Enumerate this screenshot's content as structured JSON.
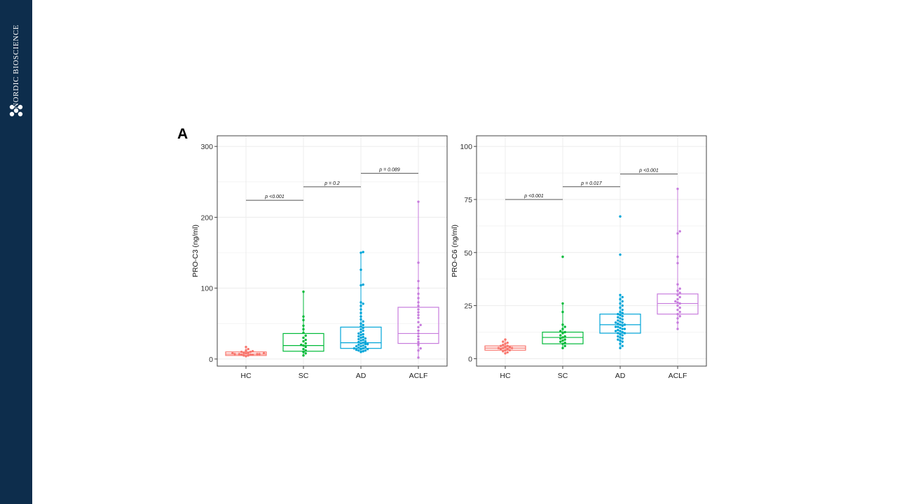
{
  "brand": {
    "name": "NORDIC BIOSCIENCE",
    "logo_icon": "molecule-logo-icon"
  },
  "panel_label": "A",
  "chart_data": [
    {
      "type": "box",
      "ylabel": "PRO-C3 (ng/ml)",
      "ylim": [
        -10,
        315
      ],
      "yticks": [
        0,
        100,
        200,
        300
      ],
      "categories": [
        "HC",
        "SC",
        "AD",
        "ACLF"
      ],
      "colors": [
        "#f8766d",
        "#00ba38",
        "#00a5d8",
        "#c77cdd"
      ],
      "boxes": [
        {
          "q1": 5,
          "median": 7,
          "q3": 10,
          "min": 4,
          "max": 17
        },
        {
          "q1": 11,
          "median": 19,
          "q3": 36,
          "min": 5,
          "max": 95
        },
        {
          "q1": 15,
          "median": 23,
          "q3": 45,
          "min": 10,
          "max": 150
        },
        {
          "q1": 22,
          "median": 36,
          "q3": 73,
          "min": 2,
          "max": 222
        }
      ],
      "points": [
        [
          4,
          5,
          5,
          6,
          6,
          6,
          7,
          7,
          7,
          7,
          8,
          8,
          8,
          9,
          9,
          10,
          10,
          11,
          12,
          14,
          17
        ],
        [
          5,
          8,
          10,
          12,
          14,
          17,
          19,
          20,
          22,
          25,
          27,
          30,
          33,
          37,
          42,
          47,
          55,
          60,
          95
        ],
        [
          10,
          11,
          12,
          12,
          13,
          14,
          14,
          15,
          15,
          16,
          17,
          18,
          18,
          19,
          20,
          21,
          21,
          22,
          23,
          24,
          25,
          26,
          27,
          28,
          29,
          30,
          31,
          32,
          34,
          35,
          36,
          38,
          40,
          42,
          44,
          46,
          48,
          50,
          53,
          56,
          60,
          65,
          70,
          75,
          78,
          80,
          104,
          105,
          126,
          150,
          151
        ],
        [
          2,
          12,
          15,
          20,
          24,
          28,
          32,
          36,
          40,
          45,
          48,
          52,
          58,
          62,
          66,
          70,
          75,
          80,
          86,
          92,
          100,
          110,
          136,
          222
        ]
      ],
      "comparisons": [
        {
          "from": "HC",
          "to": "SC",
          "y": 224,
          "label": "p <0.001"
        },
        {
          "from": "SC",
          "to": "AD",
          "y": 243,
          "label": "p = 0.2"
        },
        {
          "from": "AD",
          "to": "ACLF",
          "y": 262,
          "label": "p = 0.089"
        }
      ],
      "grid": true
    },
    {
      "type": "box",
      "ylabel": "PRO-C6 (ng/ml)",
      "ylim": [
        -3.5,
        105
      ],
      "yticks": [
        0,
        25,
        50,
        75,
        100
      ],
      "categories": [
        "HC",
        "SC",
        "AD",
        "ACLF"
      ],
      "colors": [
        "#f8766d",
        "#00ba38",
        "#00a5d8",
        "#c77cdd"
      ],
      "boxes": [
        {
          "q1": 4,
          "median": 5,
          "q3": 6,
          "min": 2.5,
          "max": 9
        },
        {
          "q1": 7,
          "median": 10,
          "q3": 12.5,
          "min": 5,
          "max": 26
        },
        {
          "q1": 12,
          "median": 16,
          "q3": 21,
          "min": 5,
          "max": 30
        },
        {
          "q1": 21,
          "median": 26,
          "q3": 30.5,
          "min": 14,
          "max": 80
        }
      ],
      "points": [
        [
          2.5,
          3,
          3.5,
          4,
          4,
          4.5,
          4.5,
          5,
          5,
          5,
          5.5,
          5.5,
          6,
          6,
          6.5,
          7,
          7.5,
          8,
          9
        ],
        [
          5,
          6,
          7,
          7.5,
          8,
          8.5,
          9,
          9.5,
          10,
          10.5,
          11,
          12,
          12.5,
          13,
          14,
          15,
          16,
          22,
          26,
          48
        ],
        [
          5,
          6,
          7,
          8,
          8.5,
          9,
          9.5,
          10,
          10.5,
          11,
          11.5,
          12,
          12,
          12.5,
          13,
          13,
          13.5,
          14,
          14,
          14.5,
          15,
          15,
          15.5,
          16,
          16,
          16.5,
          17,
          17,
          17.5,
          18,
          18.5,
          19,
          19.5,
          20,
          20.5,
          21,
          21.5,
          22,
          23,
          24,
          25,
          26,
          27,
          28,
          29,
          30,
          49,
          67
        ],
        [
          14,
          17,
          19,
          20,
          21,
          22,
          23,
          24,
          25,
          26,
          26.5,
          27,
          28,
          29,
          30,
          31,
          32,
          33,
          35,
          45,
          48,
          59,
          60,
          80
        ]
      ],
      "comparisons": [
        {
          "from": "HC",
          "to": "SC",
          "y": 75,
          "label": "p <0.001"
        },
        {
          "from": "SC",
          "to": "AD",
          "y": 81,
          "label": "p = 0.017"
        },
        {
          "from": "AD",
          "to": "ACLF",
          "y": 87,
          "label": "p <0.001"
        }
      ],
      "grid": true
    }
  ]
}
